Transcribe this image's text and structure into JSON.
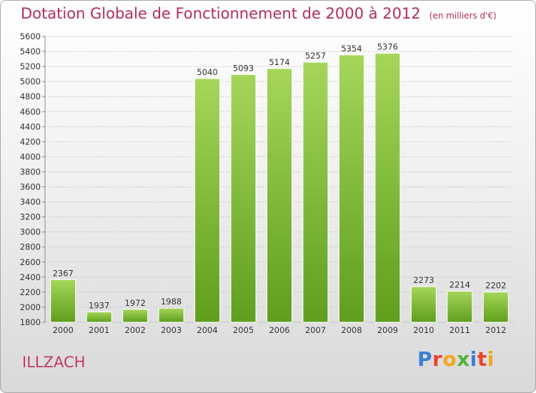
{
  "title": "Dotation Globale de Fonctionnement de 2000 à 2012",
  "unit_note": "(en milliers d'€)",
  "commune": "ILLZACH",
  "brand": "Proxiti",
  "colors": {
    "title": "#b42c5c",
    "bar_top": "#a5d65a",
    "bar_bottom": "#5f9e1c",
    "grid": "#c8c8c8"
  },
  "chart_data": {
    "type": "bar",
    "title": "Dotation Globale de Fonctionnement de 2000 à 2012",
    "subtitle": "(en milliers d'€)",
    "categories": [
      "2000",
      "2001",
      "2002",
      "2003",
      "2004",
      "2005",
      "2006",
      "2007",
      "2008",
      "2009",
      "2010",
      "2011",
      "2012"
    ],
    "values": [
      2367,
      1937,
      1972,
      1988,
      5040,
      5093,
      5174,
      5257,
      5354,
      5376,
      2273,
      2214,
      2202
    ],
    "ylim": [
      1800,
      5600
    ],
    "ytick_step": 200,
    "grid": true,
    "legend": "none"
  }
}
